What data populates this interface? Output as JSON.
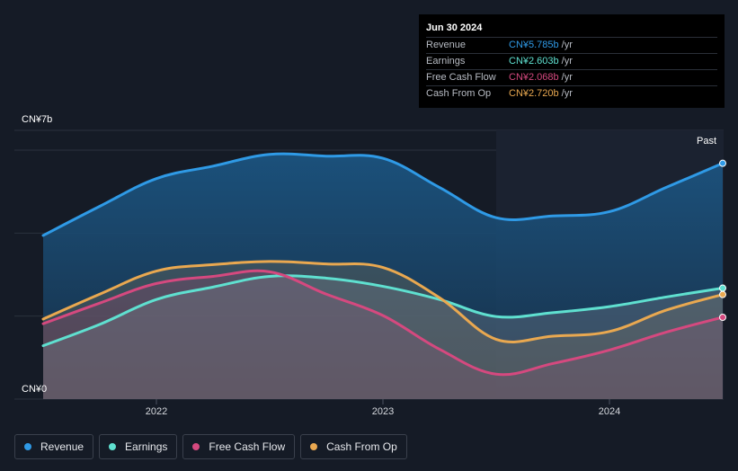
{
  "tooltip": {
    "date": "Jun 30 2024",
    "rows": [
      {
        "label": "Revenue",
        "value": "CN¥5.785b",
        "unit": "/yr",
        "color": "#2f9ae6"
      },
      {
        "label": "Earnings",
        "value": "CN¥2.603b",
        "unit": "/yr",
        "color": "#5fe0d0"
      },
      {
        "label": "Free Cash Flow",
        "value": "CN¥2.068b",
        "unit": "/yr",
        "color": "#d5497f"
      },
      {
        "label": "Cash From Op",
        "value": "CN¥2.720b",
        "unit": "/yr",
        "color": "#e9a850"
      }
    ]
  },
  "past_label": "Past",
  "chart_data": {
    "type": "area",
    "ylim": [
      0,
      7
    ],
    "y_tick_labels": [
      "CN¥7b",
      "CN¥0"
    ],
    "x_tick_labels": [
      {
        "label": "2022",
        "x": 2022.0
      },
      {
        "label": "2023",
        "x": 2023.0
      },
      {
        "label": "2024",
        "x": 2024.0
      }
    ],
    "x_range": [
      2021.5,
      2024.5
    ],
    "past_start": 2023.5,
    "series": [
      {
        "name": "Revenue",
        "color": "#2f9ae6",
        "points": [
          [
            2021.5,
            4.6
          ],
          [
            2021.75,
            5.42
          ],
          [
            2022.0,
            6.2
          ],
          [
            2022.25,
            6.55
          ],
          [
            2022.5,
            6.88
          ],
          [
            2022.75,
            6.83
          ],
          [
            2023.0,
            6.77
          ],
          [
            2023.25,
            5.95
          ],
          [
            2023.5,
            5.1
          ],
          [
            2023.75,
            5.15
          ],
          [
            2024.0,
            5.27
          ],
          [
            2024.25,
            5.95
          ],
          [
            2024.5,
            6.63
          ]
        ]
      },
      {
        "name": "Earnings",
        "color": "#5fe0d0",
        "points": [
          [
            2021.5,
            1.5
          ],
          [
            2021.75,
            2.1
          ],
          [
            2022.0,
            2.8
          ],
          [
            2022.25,
            3.15
          ],
          [
            2022.5,
            3.45
          ],
          [
            2022.75,
            3.4
          ],
          [
            2023.0,
            3.17
          ],
          [
            2023.25,
            2.8
          ],
          [
            2023.5,
            2.32
          ],
          [
            2023.75,
            2.43
          ],
          [
            2024.0,
            2.6
          ],
          [
            2024.25,
            2.87
          ],
          [
            2024.5,
            3.12
          ]
        ]
      },
      {
        "name": "Free Cash Flow",
        "color": "#d5497f",
        "points": [
          [
            2021.5,
            2.12
          ],
          [
            2021.75,
            2.7
          ],
          [
            2022.0,
            3.25
          ],
          [
            2022.25,
            3.45
          ],
          [
            2022.5,
            3.58
          ],
          [
            2022.75,
            2.95
          ],
          [
            2023.0,
            2.35
          ],
          [
            2023.25,
            1.4
          ],
          [
            2023.5,
            0.7
          ],
          [
            2023.75,
            1.0
          ],
          [
            2024.0,
            1.38
          ],
          [
            2024.25,
            1.88
          ],
          [
            2024.5,
            2.3
          ]
        ]
      },
      {
        "name": "Cash From Op",
        "color": "#e9a850",
        "points": [
          [
            2021.5,
            2.25
          ],
          [
            2021.75,
            2.95
          ],
          [
            2022.0,
            3.6
          ],
          [
            2022.25,
            3.78
          ],
          [
            2022.5,
            3.87
          ],
          [
            2022.75,
            3.8
          ],
          [
            2023.0,
            3.7
          ],
          [
            2023.25,
            2.85
          ],
          [
            2023.5,
            1.68
          ],
          [
            2023.75,
            1.77
          ],
          [
            2024.0,
            1.9
          ],
          [
            2024.25,
            2.5
          ],
          [
            2024.5,
            2.94
          ]
        ]
      }
    ]
  },
  "legend": [
    {
      "label": "Revenue",
      "color": "#2f9ae6"
    },
    {
      "label": "Earnings",
      "color": "#5fe0d0"
    },
    {
      "label": "Free Cash Flow",
      "color": "#d5497f"
    },
    {
      "label": "Cash From Op",
      "color": "#e9a850"
    }
  ]
}
